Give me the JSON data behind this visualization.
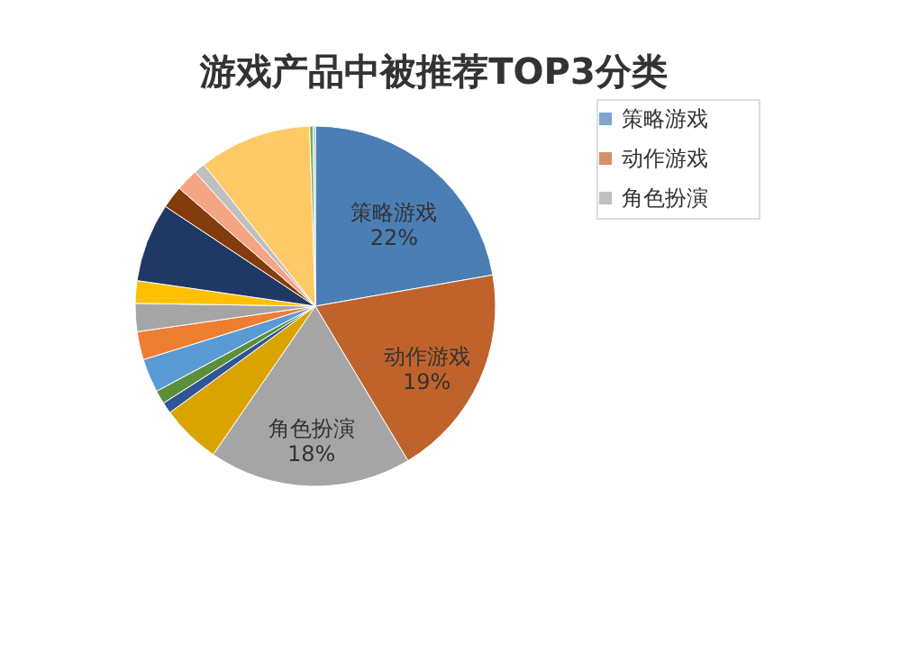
{
  "chart_data": {
    "type": "pie",
    "title": "游戏产品中被推荐TOP3分类",
    "categories": [
      "策略游戏",
      "动作游戏",
      "角色扮演",
      null,
      null,
      null,
      null,
      null,
      null,
      null,
      null,
      null,
      null,
      null,
      null,
      null,
      null
    ],
    "values": [
      22,
      19,
      18,
      5.3,
      1,
      1.2,
      3,
      2.5,
      2.5,
      2,
      7,
      2,
      2,
      1,
      10,
      0.3,
      0.2
    ],
    "value_labels": [
      "22%",
      "19%",
      "18%",
      null,
      null,
      null,
      null,
      null,
      null,
      null,
      null,
      null,
      null,
      null,
      null,
      null,
      null
    ],
    "colors": [
      "#4a7eb5",
      "#c0622b",
      "#a5a5a5",
      "#d9a300",
      "#2f5597",
      "#5b8f3a",
      "#5b9bd5",
      "#ed7d31",
      "#a5a5a5",
      "#ffc000",
      "#1f3864",
      "#843c0c",
      "#f4a582",
      "#bfbfbf",
      "#ffc966",
      "#70ad47",
      "#9dc3e6"
    ],
    "legend": "right"
  }
}
